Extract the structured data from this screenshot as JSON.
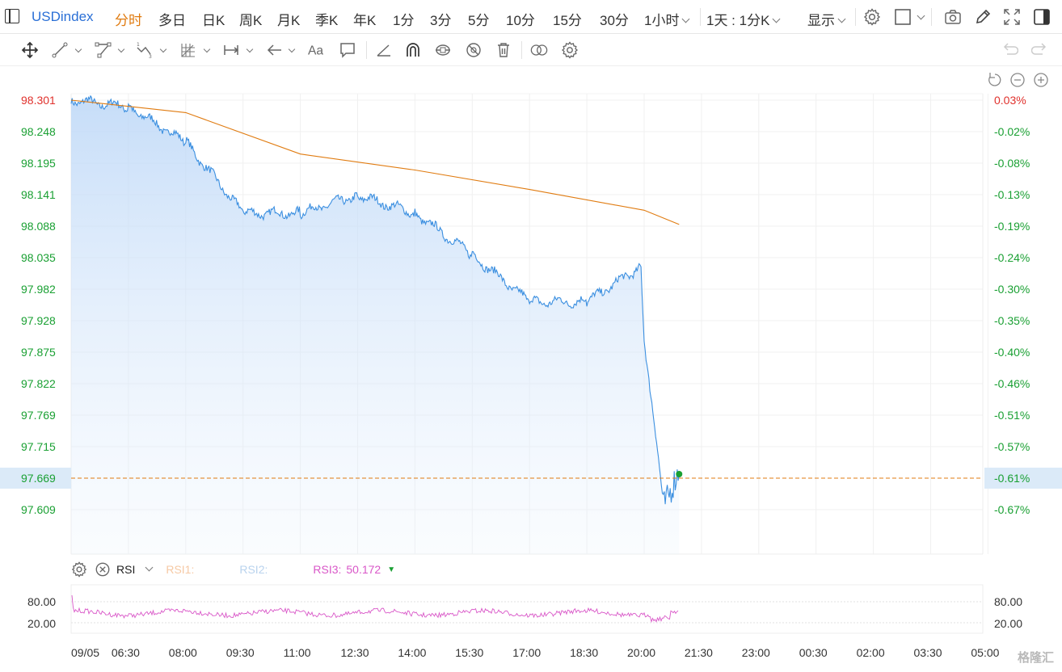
{
  "toolbar": {
    "symbol": "USDindex",
    "periods": [
      "分时",
      "多日",
      "日K",
      "周K",
      "月K",
      "季K",
      "年K",
      "1分",
      "3分",
      "5分",
      "10分",
      "15分",
      "30分"
    ],
    "active_period": "分时",
    "hour_select": "1小时",
    "range_select": "1天 : 1分K",
    "display_select": "显示"
  },
  "chart": {
    "y_left_labels": [
      "98.301",
      "98.248",
      "98.195",
      "98.141",
      "98.088",
      "98.035",
      "97.982",
      "97.928",
      "97.875",
      "97.822",
      "97.769",
      "97.715",
      "97.609"
    ],
    "y_right_labels": [
      "0.03%",
      "-0.02%",
      "-0.08%",
      "-0.13%",
      "-0.19%",
      "-0.24%",
      "-0.30%",
      "-0.35%",
      "-0.40%",
      "-0.46%",
      "-0.51%",
      "-0.57%",
      "-0.67%"
    ],
    "current_price": "97.669",
    "current_change": "-0.61%",
    "x_labels": [
      "09/05",
      "06:30",
      "08:00",
      "09:30",
      "11:00",
      "12:30",
      "14:00",
      "15:30",
      "17:00",
      "18:30",
      "20:00",
      "21:30",
      "23:00",
      "00:30",
      "02:00",
      "03:30",
      "05:00"
    ],
    "colors": {
      "up": "#e0312c",
      "down": "#1aa033",
      "line": "#3b8fe0",
      "avg": "#e07b10",
      "rsi": "#d957c8"
    }
  },
  "rsi": {
    "name": "RSI",
    "rsi1_label": "RSI1:",
    "rsi2_label": "RSI2:",
    "rsi3_label": "RSI3:",
    "rsi3_value": "50.172",
    "y_labels": [
      "80.00",
      "20.00"
    ]
  },
  "watermark": "格隆汇",
  "chart_data": {
    "type": "line",
    "series": [
      {
        "name": "",
        "x": [
          "05:00",
          "06:30",
          "08:00",
          "09:30",
          "11:00",
          "12:30",
          "14:00",
          "15:30",
          "17:00",
          "18:30",
          "19:55",
          "20:00",
          "20:30",
          "20:55"
        ],
        "values": [
          98.301,
          98.29,
          98.23,
          98.11,
          98.11,
          98.14,
          98.11,
          98.04,
          97.96,
          97.96,
          98.02,
          97.9,
          97.62,
          97.669
        ]
      },
      {
        "name": "",
        "x": [
          "05:00",
          "08:00",
          "11:00",
          "14:00",
          "17:00",
          "20:00",
          "20:55"
        ],
        "values": [
          98.301,
          98.28,
          98.21,
          98.183,
          98.15,
          98.115,
          98.091
        ]
      }
    ],
    "ylim": [
      97.56,
      98.31
    ],
    "xlim": [
      "05:00",
      "05:00"
    ]
  }
}
